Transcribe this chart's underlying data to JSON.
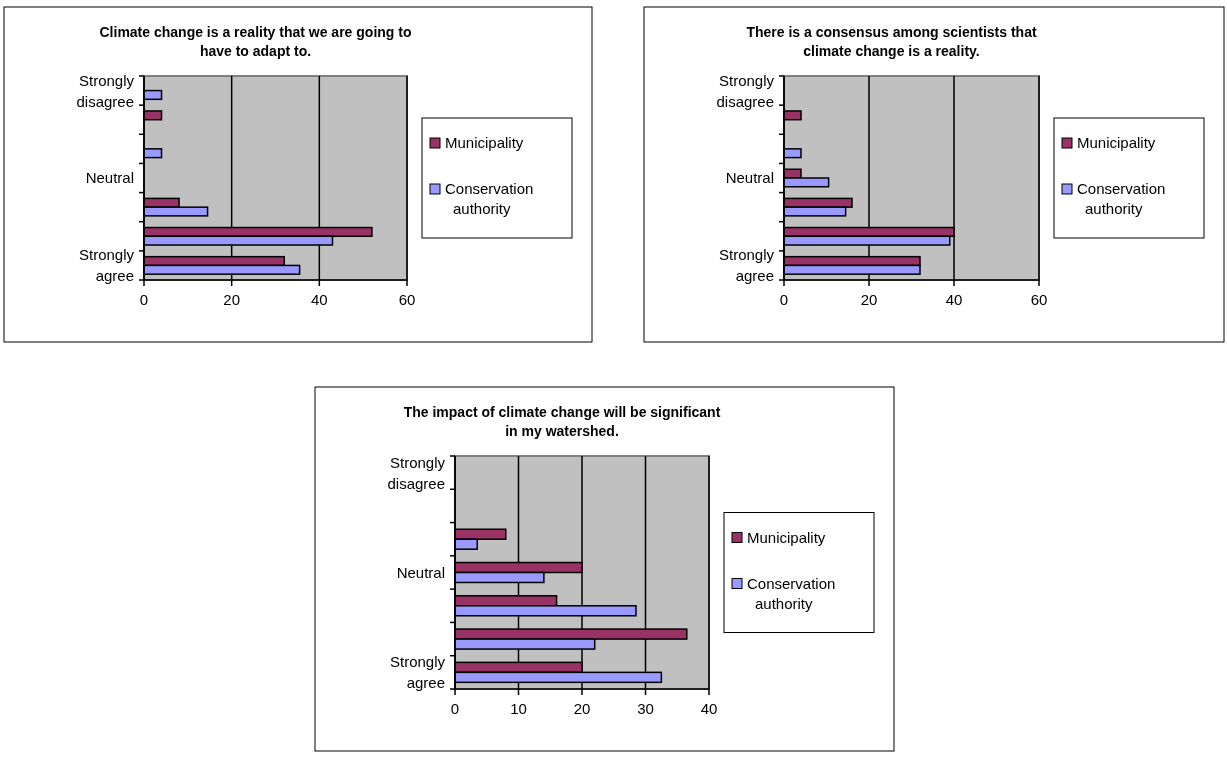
{
  "chart_data": [
    {
      "type": "bar",
      "orientation": "horizontal",
      "title": "Climate change is a reality that we are going to have to adapt to.",
      "categories": [
        "Strongly disagree",
        null,
        null,
        "Neutral",
        null,
        null,
        "Strongly agree"
      ],
      "series": [
        {
          "name": "Municipality",
          "color": "#993366",
          "values": [
            null,
            4,
            null,
            null,
            8,
            52,
            32
          ]
        },
        {
          "name": "Conservation authority",
          "color": "#9999ff",
          "values": [
            4,
            null,
            4,
            null,
            14.5,
            43,
            35.5
          ]
        }
      ],
      "xlim": [
        0,
        60
      ],
      "xticks": [
        0,
        20,
        40,
        60
      ],
      "grid": "x",
      "legend": "right"
    },
    {
      "type": "bar",
      "orientation": "horizontal",
      "title": "There is a consensus among scientists that climate change is a reality.",
      "categories": [
        "Strongly disagree",
        null,
        null,
        "Neutral",
        null,
        null,
        "Strongly agree"
      ],
      "series": [
        {
          "name": "Municipality",
          "color": "#993366",
          "values": [
            null,
            4,
            null,
            4,
            16,
            40,
            32
          ]
        },
        {
          "name": "Conservation authority",
          "color": "#9999ff",
          "values": [
            null,
            null,
            4,
            10.5,
            14.5,
            39,
            32
          ]
        }
      ],
      "xlim": [
        0,
        60
      ],
      "xticks": [
        0,
        20,
        40,
        60
      ],
      "grid": "x",
      "legend": "right"
    },
    {
      "type": "bar",
      "orientation": "horizontal",
      "title": "The impact of climate change will be significant in my watershed.",
      "categories": [
        "Strongly disagree",
        null,
        null,
        "Neutral",
        null,
        null,
        "Strongly agree"
      ],
      "series": [
        {
          "name": "Municipality",
          "color": "#993366",
          "values": [
            null,
            null,
            8,
            20,
            16,
            36.5,
            20
          ]
        },
        {
          "name": "Conservation authority",
          "color": "#9999ff",
          "values": [
            null,
            null,
            3.5,
            14,
            28.5,
            22,
            32.5
          ]
        }
      ],
      "xlim": [
        0,
        40
      ],
      "xticks": [
        0,
        10,
        20,
        30,
        40
      ],
      "grid": "x",
      "legend": "right"
    }
  ]
}
